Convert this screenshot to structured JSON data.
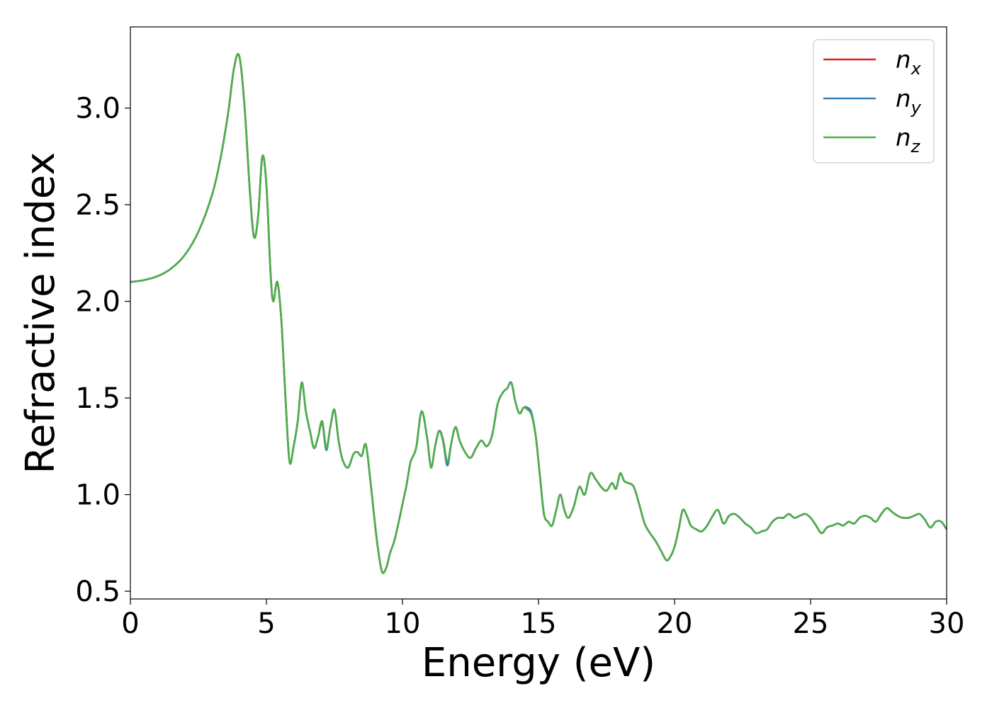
{
  "chart_data": {
    "type": "line",
    "xlabel": "Energy (eV)",
    "ylabel": "Refractive index",
    "xlim": [
      0,
      30
    ],
    "ylim": [
      0.46,
      3.42
    ],
    "grid": false,
    "legend_position": "top-right",
    "x_ticks": [
      0,
      5,
      10,
      15,
      20,
      25,
      30
    ],
    "x_tick_labels": [
      "0",
      "5",
      "10",
      "15",
      "20",
      "25",
      "30"
    ],
    "y_ticks": [
      0.5,
      1.0,
      1.5,
      2.0,
      2.5,
      3.0
    ],
    "y_tick_labels": [
      "0.5",
      "1.0",
      "1.5",
      "2.0",
      "2.5",
      "3.0"
    ],
    "x": [
      0,
      0.5,
      1.0,
      1.5,
      2.0,
      2.5,
      3.0,
      3.3,
      3.6,
      3.8,
      4.0,
      4.2,
      4.4,
      4.55,
      4.7,
      4.85,
      5.0,
      5.15,
      5.25,
      5.4,
      5.55,
      5.7,
      5.85,
      6.0,
      6.15,
      6.3,
      6.45,
      6.6,
      6.75,
      6.9,
      7.05,
      7.2,
      7.35,
      7.5,
      7.65,
      7.8,
      8.0,
      8.2,
      8.35,
      8.5,
      8.65,
      8.8,
      8.95,
      9.1,
      9.25,
      9.4,
      9.55,
      9.7,
      9.85,
      10.0,
      10.15,
      10.3,
      10.5,
      10.7,
      10.9,
      11.05,
      11.2,
      11.35,
      11.5,
      11.65,
      11.8,
      11.95,
      12.1,
      12.3,
      12.5,
      12.7,
      12.9,
      13.1,
      13.3,
      13.5,
      13.7,
      13.85,
      14.0,
      14.15,
      14.3,
      14.45,
      14.6,
      14.75,
      14.9,
      15.05,
      15.2,
      15.35,
      15.5,
      15.65,
      15.8,
      15.95,
      16.1,
      16.3,
      16.5,
      16.7,
      16.9,
      17.1,
      17.3,
      17.5,
      17.7,
      17.85,
      18.0,
      18.15,
      18.3,
      18.5,
      18.7,
      18.9,
      19.1,
      19.3,
      19.5,
      19.7,
      19.85,
      20.0,
      20.15,
      20.3,
      20.45,
      20.6,
      20.8,
      21.0,
      21.2,
      21.4,
      21.6,
      21.8,
      22.0,
      22.2,
      22.4,
      22.6,
      22.8,
      23.0,
      23.2,
      23.4,
      23.6,
      23.8,
      24.0,
      24.2,
      24.4,
      24.6,
      24.8,
      25.0,
      25.2,
      25.4,
      25.6,
      25.8,
      26.0,
      26.2,
      26.4,
      26.6,
      26.8,
      27.0,
      27.2,
      27.4,
      27.6,
      27.8,
      28.0,
      28.2,
      28.4,
      28.6,
      28.8,
      29.0,
      29.2,
      29.4,
      29.6,
      29.8,
      30.0
    ],
    "series": [
      {
        "name": "n_x",
        "color": "#e41a1c",
        "values": [
          2.1,
          2.11,
          2.13,
          2.17,
          2.24,
          2.36,
          2.55,
          2.73,
          2.98,
          3.2,
          3.27,
          3.0,
          2.55,
          2.33,
          2.45,
          2.75,
          2.6,
          2.15,
          2.0,
          2.1,
          1.9,
          1.5,
          1.17,
          1.25,
          1.38,
          1.58,
          1.43,
          1.33,
          1.24,
          1.3,
          1.38,
          1.24,
          1.35,
          1.44,
          1.28,
          1.18,
          1.14,
          1.21,
          1.22,
          1.2,
          1.26,
          1.1,
          0.9,
          0.72,
          0.6,
          0.62,
          0.7,
          0.76,
          0.85,
          0.95,
          1.05,
          1.17,
          1.24,
          1.43,
          1.3,
          1.14,
          1.25,
          1.33,
          1.28,
          1.16,
          1.27,
          1.35,
          1.28,
          1.22,
          1.19,
          1.24,
          1.28,
          1.25,
          1.31,
          1.47,
          1.53,
          1.55,
          1.58,
          1.48,
          1.42,
          1.45,
          1.44,
          1.41,
          1.3,
          1.1,
          0.9,
          0.86,
          0.84,
          0.92,
          1.0,
          0.92,
          0.88,
          0.94,
          1.04,
          1.0,
          1.11,
          1.08,
          1.04,
          1.02,
          1.06,
          1.03,
          1.11,
          1.07,
          1.06,
          1.04,
          0.95,
          0.85,
          0.8,
          0.76,
          0.71,
          0.66,
          0.68,
          0.73,
          0.82,
          0.92,
          0.89,
          0.84,
          0.82,
          0.81,
          0.84,
          0.89,
          0.92,
          0.85,
          0.89,
          0.9,
          0.88,
          0.85,
          0.83,
          0.8,
          0.81,
          0.82,
          0.86,
          0.88,
          0.88,
          0.9,
          0.88,
          0.89,
          0.9,
          0.88,
          0.84,
          0.8,
          0.83,
          0.84,
          0.85,
          0.84,
          0.86,
          0.85,
          0.88,
          0.89,
          0.88,
          0.86,
          0.9,
          0.93,
          0.91,
          0.89,
          0.88,
          0.88,
          0.89,
          0.9,
          0.87,
          0.83,
          0.86,
          0.86,
          0.82
        ]
      },
      {
        "name": "n_y",
        "color": "#377eb8",
        "values": [
          2.1,
          2.11,
          2.13,
          2.17,
          2.24,
          2.36,
          2.55,
          2.73,
          2.98,
          3.2,
          3.27,
          3.0,
          2.55,
          2.33,
          2.45,
          2.75,
          2.6,
          2.15,
          2.0,
          2.1,
          1.9,
          1.5,
          1.17,
          1.25,
          1.38,
          1.58,
          1.43,
          1.33,
          1.24,
          1.3,
          1.37,
          1.23,
          1.35,
          1.44,
          1.28,
          1.18,
          1.14,
          1.21,
          1.22,
          1.2,
          1.26,
          1.1,
          0.9,
          0.72,
          0.6,
          0.62,
          0.7,
          0.76,
          0.85,
          0.95,
          1.05,
          1.17,
          1.24,
          1.43,
          1.3,
          1.14,
          1.25,
          1.33,
          1.27,
          1.15,
          1.27,
          1.35,
          1.28,
          1.22,
          1.19,
          1.24,
          1.28,
          1.25,
          1.31,
          1.47,
          1.53,
          1.55,
          1.58,
          1.48,
          1.42,
          1.45,
          1.45,
          1.42,
          1.3,
          1.1,
          0.9,
          0.86,
          0.84,
          0.92,
          1.0,
          0.92,
          0.88,
          0.94,
          1.04,
          1.0,
          1.11,
          1.08,
          1.04,
          1.02,
          1.06,
          1.03,
          1.11,
          1.07,
          1.06,
          1.04,
          0.95,
          0.85,
          0.8,
          0.76,
          0.71,
          0.66,
          0.68,
          0.73,
          0.82,
          0.92,
          0.89,
          0.84,
          0.82,
          0.81,
          0.84,
          0.89,
          0.92,
          0.85,
          0.89,
          0.9,
          0.88,
          0.85,
          0.83,
          0.8,
          0.81,
          0.82,
          0.86,
          0.88,
          0.88,
          0.9,
          0.88,
          0.89,
          0.9,
          0.88,
          0.84,
          0.8,
          0.83,
          0.84,
          0.85,
          0.84,
          0.86,
          0.85,
          0.88,
          0.89,
          0.88,
          0.86,
          0.9,
          0.93,
          0.91,
          0.89,
          0.88,
          0.88,
          0.89,
          0.9,
          0.87,
          0.83,
          0.86,
          0.86,
          0.82
        ]
      },
      {
        "name": "n_z",
        "color": "#4daf4a",
        "values": [
          2.1,
          2.11,
          2.13,
          2.17,
          2.24,
          2.36,
          2.55,
          2.73,
          2.98,
          3.2,
          3.27,
          3.0,
          2.55,
          2.33,
          2.45,
          2.75,
          2.6,
          2.15,
          2.0,
          2.1,
          1.9,
          1.5,
          1.17,
          1.25,
          1.38,
          1.58,
          1.43,
          1.33,
          1.24,
          1.3,
          1.38,
          1.24,
          1.35,
          1.44,
          1.28,
          1.18,
          1.14,
          1.21,
          1.22,
          1.2,
          1.26,
          1.1,
          0.9,
          0.72,
          0.6,
          0.62,
          0.7,
          0.76,
          0.85,
          0.95,
          1.05,
          1.17,
          1.24,
          1.43,
          1.3,
          1.14,
          1.25,
          1.33,
          1.28,
          1.17,
          1.27,
          1.35,
          1.28,
          1.22,
          1.19,
          1.24,
          1.28,
          1.25,
          1.31,
          1.47,
          1.53,
          1.55,
          1.58,
          1.48,
          1.42,
          1.45,
          1.44,
          1.41,
          1.3,
          1.1,
          0.9,
          0.86,
          0.84,
          0.92,
          1.0,
          0.92,
          0.88,
          0.94,
          1.04,
          1.0,
          1.11,
          1.08,
          1.04,
          1.02,
          1.06,
          1.03,
          1.11,
          1.07,
          1.06,
          1.04,
          0.95,
          0.85,
          0.8,
          0.76,
          0.71,
          0.66,
          0.68,
          0.73,
          0.82,
          0.92,
          0.89,
          0.84,
          0.82,
          0.81,
          0.84,
          0.89,
          0.92,
          0.85,
          0.89,
          0.9,
          0.88,
          0.85,
          0.83,
          0.8,
          0.81,
          0.82,
          0.86,
          0.88,
          0.88,
          0.9,
          0.88,
          0.89,
          0.9,
          0.88,
          0.84,
          0.8,
          0.83,
          0.84,
          0.85,
          0.84,
          0.86,
          0.85,
          0.88,
          0.89,
          0.88,
          0.86,
          0.9,
          0.93,
          0.91,
          0.89,
          0.88,
          0.88,
          0.89,
          0.9,
          0.87,
          0.83,
          0.86,
          0.86,
          0.82
        ]
      }
    ],
    "legend": [
      {
        "base": "n",
        "sub": "x",
        "color": "#e41a1c"
      },
      {
        "base": "n",
        "sub": "y",
        "color": "#377eb8"
      },
      {
        "base": "n",
        "sub": "z",
        "color": "#4daf4a"
      }
    ]
  }
}
